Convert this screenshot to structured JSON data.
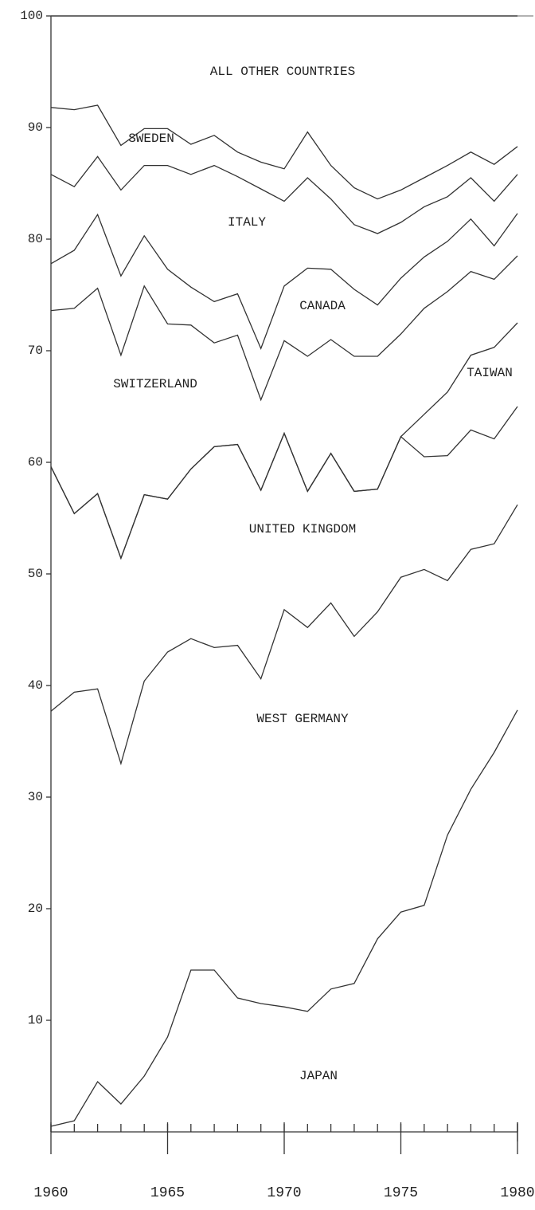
{
  "chart_data": {
    "type": "stacked_line",
    "x": [
      1960,
      1961,
      1962,
      1963,
      1964,
      1965,
      1966,
      1967,
      1968,
      1969,
      1970,
      1971,
      1972,
      1973,
      1974,
      1975,
      1976,
      1977,
      1978,
      1979,
      1980
    ],
    "xlim": [
      1960,
      1980
    ],
    "xticks": [
      1960,
      1965,
      1970,
      1975,
      1980
    ],
    "ylim": [
      0,
      100
    ],
    "yticks": [
      10,
      20,
      30,
      40,
      50,
      60,
      70,
      80,
      90,
      100
    ],
    "color": "#333333",
    "series": [
      {
        "name": "JAPAN",
        "values": [
          0.5,
          1,
          4.5,
          2.5,
          5,
          8.5,
          14.5,
          14.5,
          12,
          11.5,
          11.2,
          10.8,
          12.8,
          13.3,
          17.3,
          19.7,
          20.3,
          26.6,
          30.7,
          34,
          37.8
        ]
      },
      {
        "name": "WEST GERMANY",
        "values": [
          37.2,
          38.4,
          35.2,
          30.5,
          35.4,
          34.5,
          29.7,
          28.9,
          31.6,
          29.1,
          35.6,
          34.4,
          34.6,
          31.1,
          29.3,
          30,
          30.1,
          22.8,
          21.5,
          18.7,
          18.4
        ]
      },
      {
        "name": "UNITED KINGDOM",
        "values": [
          21.9,
          16,
          17.5,
          18.4,
          16.7,
          13.7,
          15.2,
          18,
          18,
          16.9,
          15.8,
          12.2,
          13.4,
          13,
          11,
          12.6,
          10.1,
          11.2,
          10.7,
          9.4,
          8.8
        ]
      },
      {
        "name": "TAIWAN",
        "values": [
          0,
          0,
          0,
          0,
          0,
          0,
          0,
          0,
          0,
          0,
          0,
          0,
          0,
          0,
          0,
          0,
          3.8,
          5.7,
          6.7,
          8.2,
          7.5
        ]
      },
      {
        "name": "SWITZERLAND",
        "values": [
          14,
          18.4,
          18.4,
          18.2,
          18.7,
          15.7,
          12.9,
          9.3,
          9.8,
          8.1,
          8.3,
          12.1,
          10.2,
          12.1,
          11.9,
          9.2,
          9.5,
          9,
          7.5,
          6.1,
          6
        ]
      },
      {
        "name": "CANADA",
        "values": [
          4.2,
          5.2,
          6.6,
          7.1,
          4.5,
          4.9,
          3.4,
          3.7,
          3.7,
          4.6,
          4.9,
          7.9,
          6.3,
          6,
          4.6,
          5,
          4.6,
          4.5,
          4.7,
          3,
          3.8
        ]
      },
      {
        "name": "ITALY",
        "values": [
          8,
          5.7,
          5.2,
          7.7,
          6.3,
          9.3,
          10.1,
          12.2,
          10.5,
          14.3,
          7.6,
          8.1,
          6.3,
          5.8,
          6.4,
          5,
          4.5,
          4,
          3.7,
          4,
          3.5
        ]
      },
      {
        "name": "SWEDEN",
        "values": [
          6,
          6.9,
          4.6,
          4,
          3.3,
          3.3,
          2.7,
          2.7,
          2.2,
          2.4,
          2.9,
          4.1,
          3,
          3.3,
          3.1,
          2.9,
          2.6,
          2.8,
          2.3,
          3.3,
          2.5
        ]
      },
      {
        "name": "ALL OTHER COUNTRIES",
        "values": [
          8.2,
          8.4,
          8,
          11.6,
          10.1,
          10.1,
          11.5,
          10.7,
          12.2,
          13.1,
          13.7,
          10.4,
          13.4,
          15.4,
          16.4,
          15.6,
          14.5,
          13.4,
          12.2,
          13.3,
          11.7
        ]
      }
    ]
  }
}
